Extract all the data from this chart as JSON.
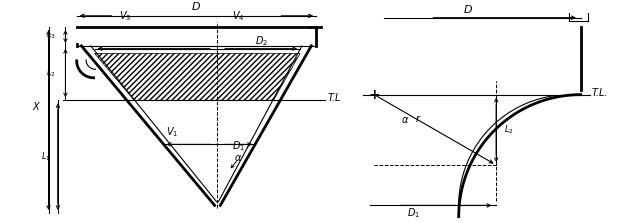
{
  "bg_color": "#ffffff",
  "line_color": "#000000",
  "fig_width": 6.27,
  "fig_height": 2.23,
  "dpi": 100
}
